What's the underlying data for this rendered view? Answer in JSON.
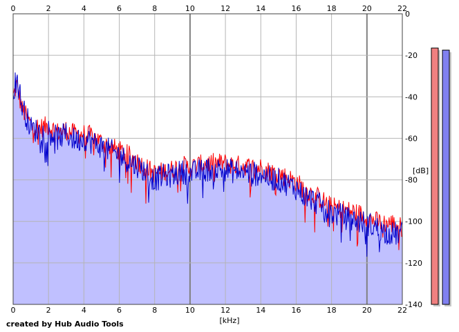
{
  "chart_data": {
    "type": "line",
    "title": "",
    "xlabel": "[kHz]",
    "ylabel": "[dB]",
    "xlim": [
      0,
      22
    ],
    "ylim": [
      -140,
      0
    ],
    "x_ticks": [
      "0",
      "2",
      "4",
      "6",
      "8",
      "10",
      "12",
      "14",
      "16",
      "18",
      "20",
      "22"
    ],
    "y_ticks": [
      "0",
      "-20",
      "-40",
      "-60",
      "-80",
      "-100",
      "-120",
      "-140"
    ],
    "grid": true,
    "legend": "none",
    "series": [
      {
        "channel": "left",
        "color": "#ff0000",
        "x": [
          0.0,
          0.2,
          0.5,
          1.0,
          1.5,
          2.0,
          2.5,
          3.0,
          3.5,
          4.0,
          4.5,
          5.0,
          5.5,
          6.0,
          6.5,
          7.0,
          7.5,
          8.0,
          8.5,
          9.0,
          9.5,
          10.0,
          10.5,
          11.0,
          11.5,
          12.0,
          12.5,
          13.0,
          13.5,
          14.0,
          14.5,
          15.0,
          15.5,
          16.0,
          16.5,
          17.0,
          17.5,
          18.0,
          18.5,
          19.0,
          19.5,
          20.0,
          20.5,
          21.0,
          21.5,
          22.0
        ],
        "values": [
          -40,
          -34,
          -46,
          -53,
          -55,
          -54,
          -57,
          -56,
          -58,
          -58,
          -59,
          -62,
          -64,
          -66,
          -68,
          -71,
          -74,
          -77,
          -76,
          -75,
          -73,
          -74,
          -73,
          -72,
          -72,
          -72,
          -73,
          -73,
          -74,
          -74,
          -76,
          -77,
          -79,
          -81,
          -85,
          -87,
          -90,
          -93,
          -94,
          -95,
          -96,
          -98,
          -100,
          -101,
          -101,
          -103
        ]
      },
      {
        "channel": "right",
        "color": "#0000cc",
        "x": [
          0.0,
          0.2,
          0.5,
          1.0,
          1.5,
          2.0,
          2.5,
          3.0,
          3.5,
          4.0,
          4.5,
          5.0,
          5.5,
          6.0,
          6.5,
          7.0,
          7.5,
          8.0,
          8.5,
          9.0,
          9.5,
          10.0,
          10.5,
          11.0,
          11.5,
          12.0,
          12.5,
          13.0,
          13.5,
          14.0,
          14.5,
          15.0,
          15.5,
          16.0,
          16.5,
          17.0,
          17.5,
          18.0,
          18.5,
          19.0,
          19.5,
          20.0,
          20.5,
          21.0,
          21.5,
          22.0
        ],
        "values": [
          -38,
          -30,
          -44,
          -55,
          -57,
          -56,
          -60,
          -58,
          -61,
          -60,
          -62,
          -64,
          -66,
          -68,
          -71,
          -73,
          -76,
          -80,
          -78,
          -78,
          -76,
          -77,
          -76,
          -75,
          -75,
          -75,
          -76,
          -76,
          -77,
          -77,
          -79,
          -80,
          -82,
          -84,
          -88,
          -90,
          -93,
          -96,
          -97,
          -99,
          -100,
          -101,
          -103,
          -105,
          -106,
          -106
        ]
      }
    ],
    "fill_color": "#c0c0ff"
  },
  "meters": {
    "left_color": "#f08080",
    "right_color": "#8080f0",
    "left_level_db": -16.5,
    "right_level_db": -17.5
  },
  "credit": "created by Hub Audio Tools"
}
